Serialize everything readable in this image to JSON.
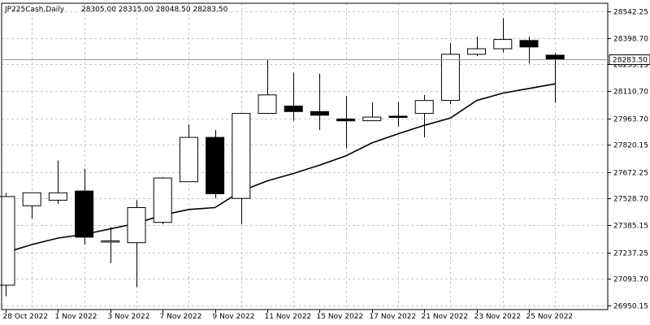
{
  "header": {
    "symbol_timeframe": "JP225Cash,Daily",
    "ohlc_text": "28305.00 28315.00 28048.50 28283.50"
  },
  "chart_data": {
    "type": "candlestick",
    "title": "JP225Cash,Daily",
    "ylim": [
      26950.15,
      28542.25
    ],
    "y_ticks": [
      28542.25,
      28398.7,
      28255.15,
      28110.7,
      27963.7,
      27820.15,
      27672.25,
      27528.7,
      27385.15,
      27237.25,
      27093.7,
      26950.15
    ],
    "current_price": 28283.5,
    "current_price_label": "28283.50",
    "x_labels": [
      {
        "index": 0,
        "label": "28 Oct 2022"
      },
      {
        "index": 2,
        "label": "1 Nov 2022"
      },
      {
        "index": 4,
        "label": "3 Nov 2022"
      },
      {
        "index": 6,
        "label": "7 Nov 2022"
      },
      {
        "index": 8,
        "label": "9 Nov 2022"
      },
      {
        "index": 10,
        "label": "11 Nov 2022"
      },
      {
        "index": 12,
        "label": "15 Nov 2022"
      },
      {
        "index": 14,
        "label": "17 Nov 2022"
      },
      {
        "index": 16,
        "label": "21 Nov 2022"
      },
      {
        "index": 18,
        "label": "23 Nov 2022"
      },
      {
        "index": 20,
        "label": "25 Nov 2022"
      }
    ],
    "candles": [
      {
        "open": 27060,
        "high": 27560,
        "low": 27000,
        "close": 27540
      },
      {
        "open": 27490,
        "high": 27560,
        "low": 27420,
        "close": 27560
      },
      {
        "open": 27520,
        "high": 27735,
        "low": 27500,
        "close": 27560
      },
      {
        "open": 27570,
        "high": 27690,
        "low": 27280,
        "close": 27320
      },
      {
        "open": 27295,
        "high": 27375,
        "low": 27180,
        "close": 27300
      },
      {
        "open": 27290,
        "high": 27520,
        "low": 27050,
        "close": 27480
      },
      {
        "open": 27400,
        "high": 27645,
        "low": 27390,
        "close": 27640
      },
      {
        "open": 27620,
        "high": 27930,
        "low": 27620,
        "close": 27860
      },
      {
        "open": 27860,
        "high": 27900,
        "low": 27530,
        "close": 27555
      },
      {
        "open": 27530,
        "high": 27990,
        "low": 27390,
        "close": 27990
      },
      {
        "open": 27990,
        "high": 28280,
        "low": 27990,
        "close": 28090
      },
      {
        "open": 28030,
        "high": 28210,
        "low": 27950,
        "close": 28000
      },
      {
        "open": 28000,
        "high": 28205,
        "low": 27900,
        "close": 27980
      },
      {
        "open": 27960,
        "high": 28085,
        "low": 27800,
        "close": 27950
      },
      {
        "open": 27950,
        "high": 28050,
        "low": 27950,
        "close": 27970
      },
      {
        "open": 27975,
        "high": 28050,
        "low": 27920,
        "close": 27970
      },
      {
        "open": 27990,
        "high": 28090,
        "low": 27860,
        "close": 28060
      },
      {
        "open": 28060,
        "high": 28370,
        "low": 28040,
        "close": 28310
      },
      {
        "open": 28310,
        "high": 28405,
        "low": 28300,
        "close": 28340
      },
      {
        "open": 28340,
        "high": 28505,
        "low": 28320,
        "close": 28390
      },
      {
        "open": 28385,
        "high": 28405,
        "low": 28260,
        "close": 28350
      },
      {
        "open": 28305,
        "high": 28315,
        "low": 28048.5,
        "close": 28283.5
      }
    ],
    "ma_line": [
      27237,
      27280,
      27315,
      27335,
      27365,
      27395,
      27440,
      27470,
      27480,
      27570,
      27625,
      27665,
      27710,
      27760,
      27830,
      27880,
      27925,
      27965,
      28060,
      28100,
      28125,
      28150
    ]
  }
}
